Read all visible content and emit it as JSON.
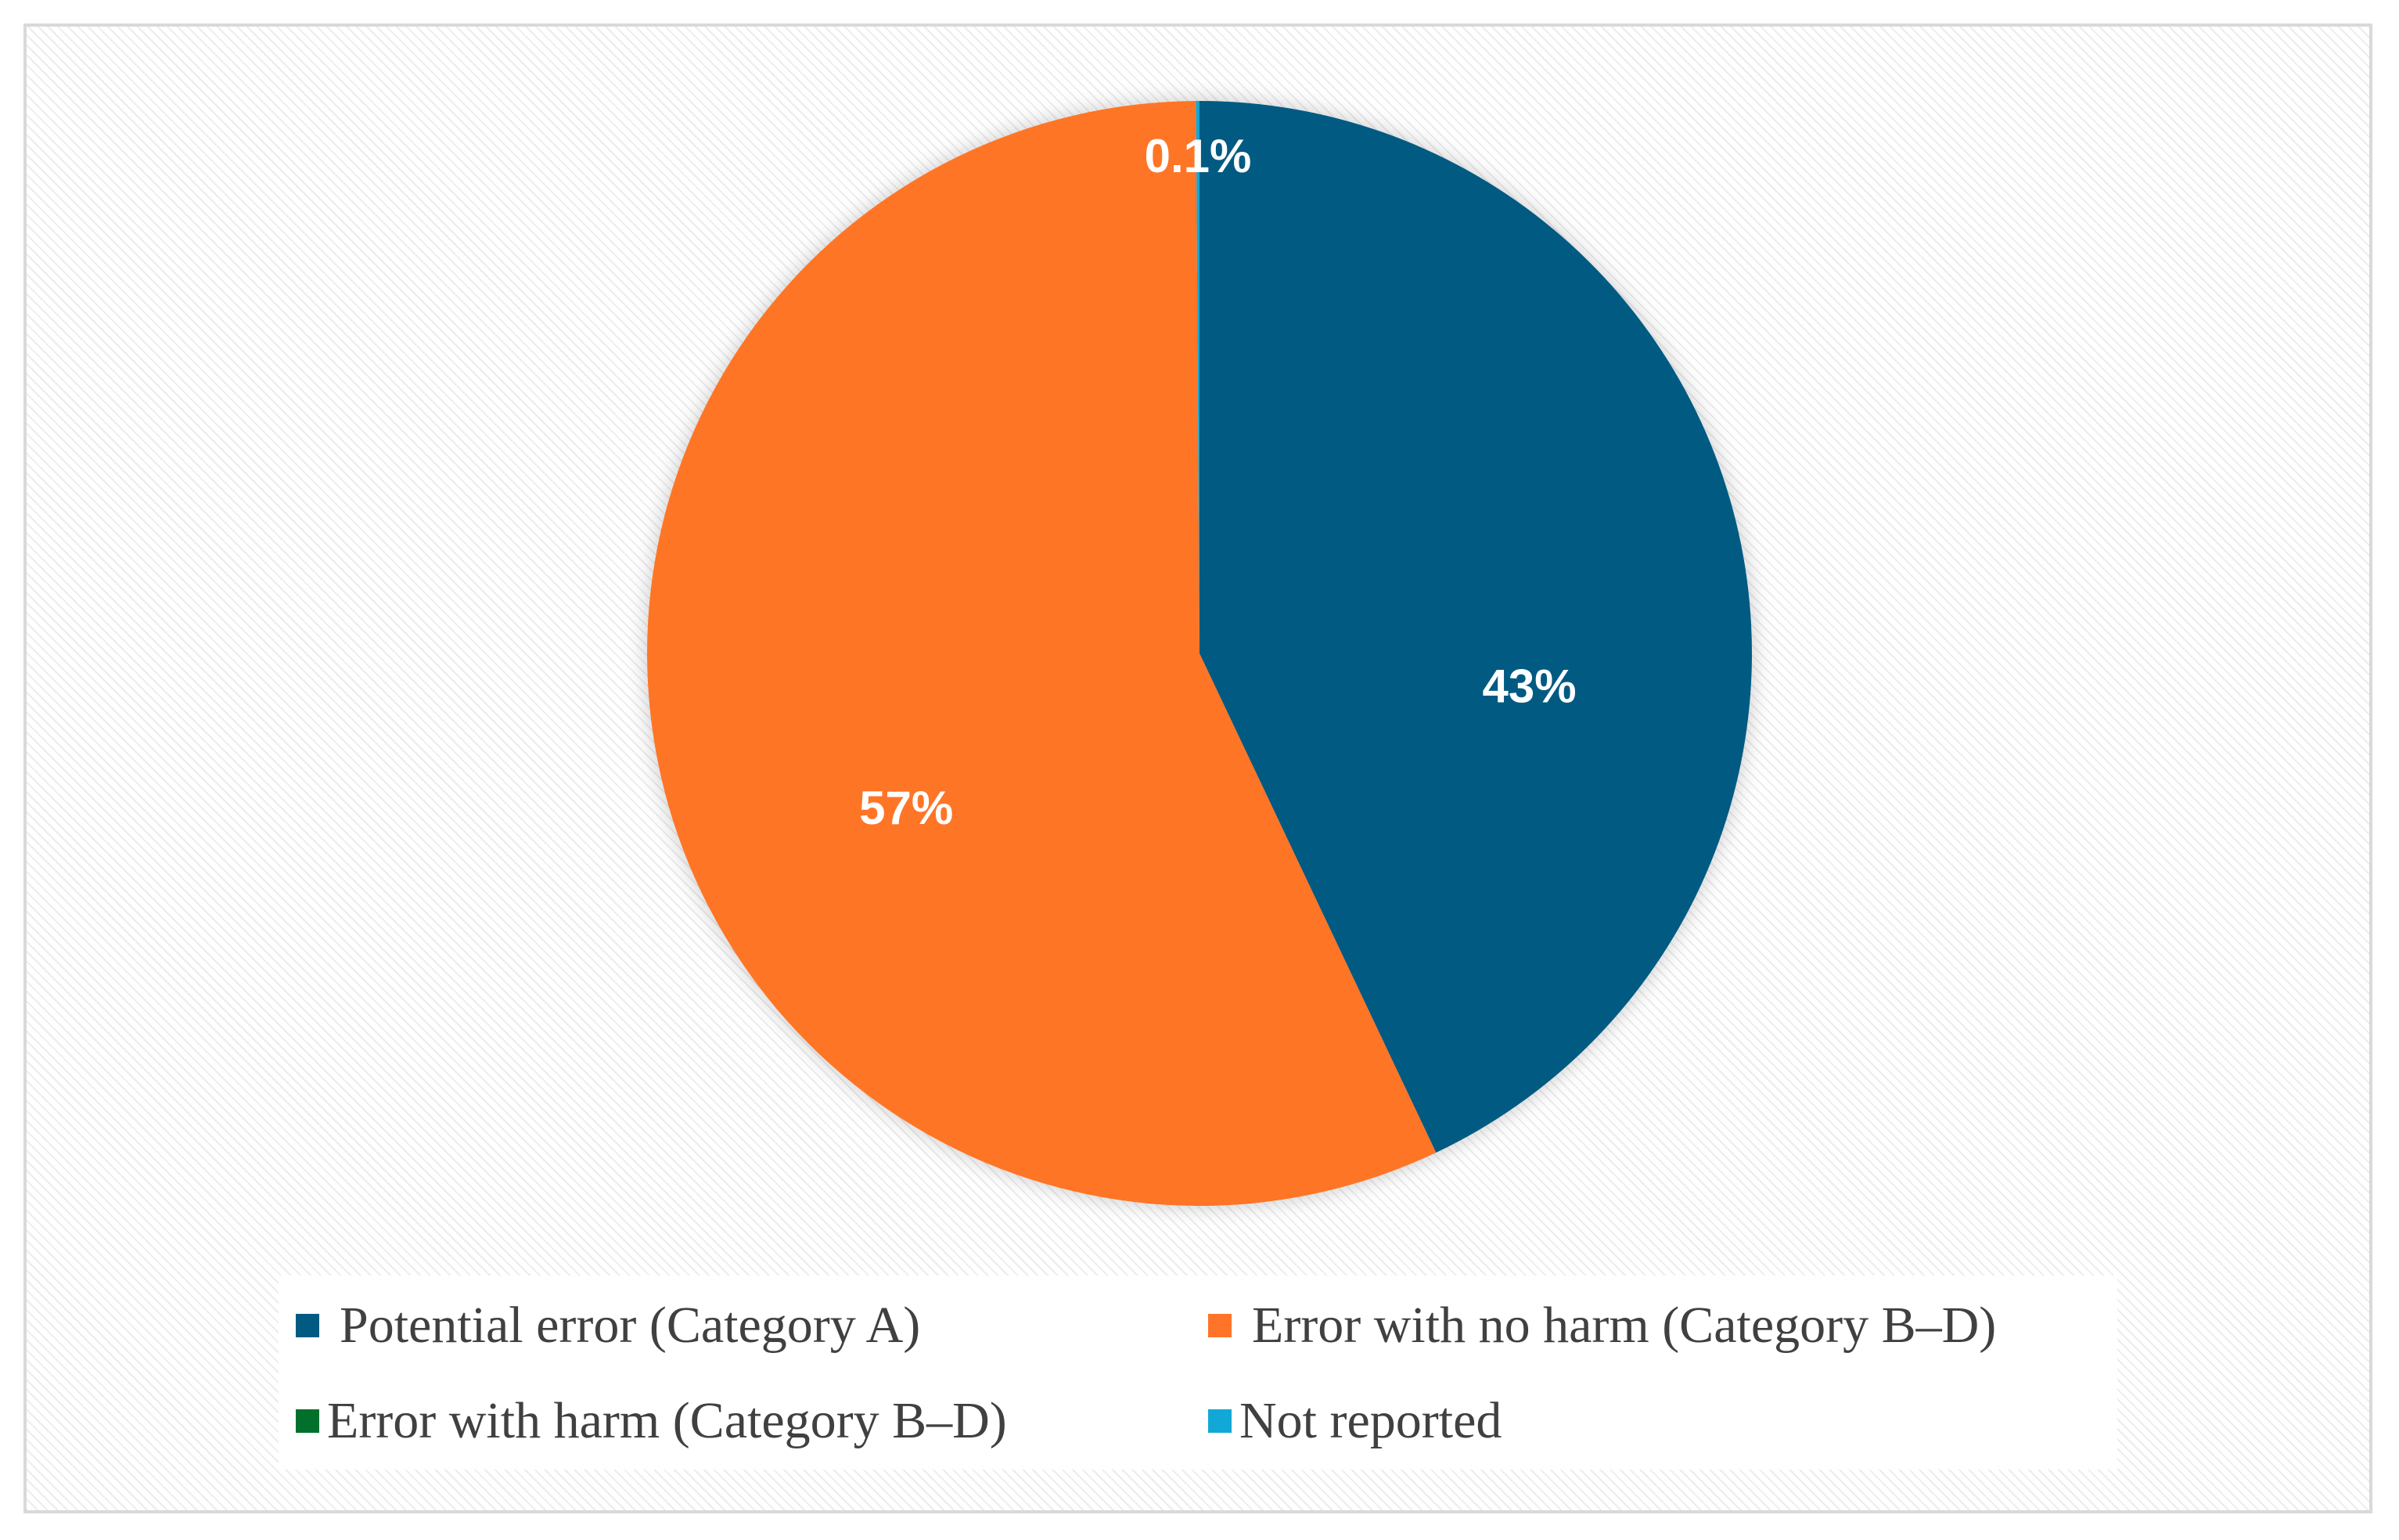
{
  "chart_data": {
    "type": "pie",
    "title": "",
    "slices": [
      {
        "label": "Potential error (Category A)",
        "value": 43,
        "display": "43%",
        "color": "#005a82"
      },
      {
        "label": "Error with no harm (Category B–D)",
        "value": 57,
        "display": "57%",
        "color": "#ff7428"
      },
      {
        "label": "Error with harm (Category B–D)",
        "value": 0,
        "display": "",
        "color": "#00702c"
      },
      {
        "label": "Not reported",
        "value": 0.1,
        "display": "0.1%",
        "color": "#11a8d8"
      }
    ],
    "legend_position": "bottom"
  }
}
